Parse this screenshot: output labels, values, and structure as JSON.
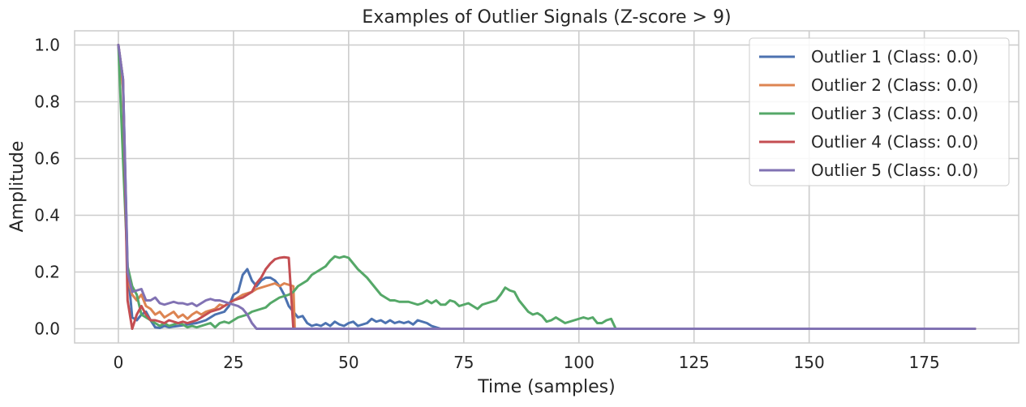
{
  "chart_data": {
    "type": "line",
    "title": "Examples of Outlier Signals (Z-score > 9)",
    "xlabel": "Time (samples)",
    "ylabel": "Amplitude",
    "xlim": [
      -9.5,
      195.5
    ],
    "ylim": [
      -0.05,
      1.05
    ],
    "xticks": [
      0,
      25,
      50,
      75,
      100,
      125,
      150,
      175
    ],
    "yticks": [
      0.0,
      0.2,
      0.4,
      0.6,
      0.8,
      1.0
    ],
    "xtick_labels": [
      "0",
      "25",
      "50",
      "75",
      "100",
      "125",
      "150",
      "175"
    ],
    "ytick_labels": [
      "0.0",
      "0.2",
      "0.4",
      "0.6",
      "0.8",
      "1.0"
    ],
    "grid": true,
    "legend_position": "top-right",
    "series": [
      {
        "name": "Outlier 1 (Class: 0.0)",
        "color": "#4c72b0",
        "points": [
          [
            0,
            1.0
          ],
          [
            1,
            0.88
          ],
          [
            2,
            0.22
          ],
          [
            3,
            0.04
          ],
          [
            4,
            0.03
          ],
          [
            5,
            0.05
          ],
          [
            6,
            0.06
          ],
          [
            7,
            0.03
          ],
          [
            8,
            0.005
          ],
          [
            9,
            0.003
          ],
          [
            10,
            0.01
          ],
          [
            11,
            0.005
          ],
          [
            12,
            0.008
          ],
          [
            13,
            0.01
          ],
          [
            14,
            0.012
          ],
          [
            15,
            0.015
          ],
          [
            16,
            0.018
          ],
          [
            17,
            0.02
          ],
          [
            18,
            0.025
          ],
          [
            19,
            0.03
          ],
          [
            20,
            0.04
          ],
          [
            21,
            0.05
          ],
          [
            22,
            0.055
          ],
          [
            23,
            0.06
          ],
          [
            24,
            0.08
          ],
          [
            25,
            0.12
          ],
          [
            26,
            0.13
          ],
          [
            27,
            0.19
          ],
          [
            28,
            0.21
          ],
          [
            29,
            0.17
          ],
          [
            30,
            0.15
          ],
          [
            31,
            0.17
          ],
          [
            32,
            0.18
          ],
          [
            33,
            0.18
          ],
          [
            34,
            0.17
          ],
          [
            35,
            0.15
          ],
          [
            36,
            0.12
          ],
          [
            37,
            0.08
          ],
          [
            38,
            0.06
          ],
          [
            39,
            0.04
          ],
          [
            40,
            0.045
          ],
          [
            41,
            0.02
          ],
          [
            42,
            0.01
          ],
          [
            43,
            0.015
          ],
          [
            44,
            0.01
          ],
          [
            45,
            0.02
          ],
          [
            46,
            0.01
          ],
          [
            47,
            0.025
          ],
          [
            48,
            0.015
          ],
          [
            49,
            0.01
          ],
          [
            50,
            0.02
          ],
          [
            51,
            0.025
          ],
          [
            52,
            0.01
          ],
          [
            53,
            0.015
          ],
          [
            54,
            0.02
          ],
          [
            55,
            0.035
          ],
          [
            56,
            0.025
          ],
          [
            57,
            0.03
          ],
          [
            58,
            0.02
          ],
          [
            59,
            0.03
          ],
          [
            60,
            0.02
          ],
          [
            61,
            0.025
          ],
          [
            62,
            0.02
          ],
          [
            63,
            0.025
          ],
          [
            64,
            0.015
          ],
          [
            65,
            0.03
          ],
          [
            66,
            0.025
          ],
          [
            67,
            0.02
          ],
          [
            68,
            0.01
          ],
          [
            69,
            0.005
          ],
          [
            70,
            0.0
          ],
          [
            186,
            0.0
          ]
        ]
      },
      {
        "name": "Outlier 2 (Class: 0.0)",
        "color": "#dd8452",
        "points": [
          [
            0,
            1.0
          ],
          [
            1,
            0.85
          ],
          [
            2,
            0.18
          ],
          [
            3,
            0.12
          ],
          [
            4,
            0.1
          ],
          [
            5,
            0.12
          ],
          [
            6,
            0.08
          ],
          [
            7,
            0.07
          ],
          [
            8,
            0.05
          ],
          [
            9,
            0.06
          ],
          [
            10,
            0.04
          ],
          [
            11,
            0.05
          ],
          [
            12,
            0.06
          ],
          [
            13,
            0.04
          ],
          [
            14,
            0.05
          ],
          [
            15,
            0.035
          ],
          [
            16,
            0.05
          ],
          [
            17,
            0.06
          ],
          [
            18,
            0.05
          ],
          [
            19,
            0.06
          ],
          [
            20,
            0.065
          ],
          [
            21,
            0.07
          ],
          [
            22,
            0.085
          ],
          [
            23,
            0.08
          ],
          [
            24,
            0.09
          ],
          [
            25,
            0.1
          ],
          [
            26,
            0.11
          ],
          [
            27,
            0.12
          ],
          [
            28,
            0.125
          ],
          [
            29,
            0.13
          ],
          [
            30,
            0.14
          ],
          [
            31,
            0.145
          ],
          [
            32,
            0.15
          ],
          [
            33,
            0.155
          ],
          [
            34,
            0.16
          ],
          [
            35,
            0.15
          ],
          [
            36,
            0.16
          ],
          [
            37,
            0.155
          ],
          [
            38,
            0.15
          ],
          [
            38.3,
            0.0
          ],
          [
            186,
            0.0
          ]
        ]
      },
      {
        "name": "Outlier 3 (Class: 0.0)",
        "color": "#55a868",
        "points": [
          [
            0,
            1.0
          ],
          [
            1,
            0.6
          ],
          [
            2,
            0.22
          ],
          [
            3,
            0.15
          ],
          [
            4,
            0.12
          ],
          [
            5,
            0.05
          ],
          [
            6,
            0.04
          ],
          [
            7,
            0.03
          ],
          [
            8,
            0.02
          ],
          [
            9,
            0.01
          ],
          [
            10,
            0.02
          ],
          [
            11,
            0.01
          ],
          [
            12,
            0.015
          ],
          [
            13,
            0.02
          ],
          [
            14,
            0.015
          ],
          [
            15,
            0.005
          ],
          [
            16,
            0.01
          ],
          [
            17,
            0.005
          ],
          [
            18,
            0.01
          ],
          [
            19,
            0.015
          ],
          [
            20,
            0.02
          ],
          [
            21,
            0.005
          ],
          [
            22,
            0.02
          ],
          [
            23,
            0.025
          ],
          [
            24,
            0.02
          ],
          [
            25,
            0.03
          ],
          [
            26,
            0.04
          ],
          [
            27,
            0.045
          ],
          [
            28,
            0.05
          ],
          [
            29,
            0.06
          ],
          [
            30,
            0.065
          ],
          [
            31,
            0.07
          ],
          [
            32,
            0.075
          ],
          [
            33,
            0.09
          ],
          [
            34,
            0.1
          ],
          [
            35,
            0.11
          ],
          [
            36,
            0.115
          ],
          [
            37,
            0.12
          ],
          [
            38,
            0.13
          ],
          [
            39,
            0.15
          ],
          [
            40,
            0.16
          ],
          [
            41,
            0.17
          ],
          [
            42,
            0.19
          ],
          [
            43,
            0.2
          ],
          [
            44,
            0.21
          ],
          [
            45,
            0.22
          ],
          [
            46,
            0.24
          ],
          [
            47,
            0.255
          ],
          [
            48,
            0.25
          ],
          [
            49,
            0.255
          ],
          [
            50,
            0.25
          ],
          [
            51,
            0.23
          ],
          [
            52,
            0.21
          ],
          [
            53,
            0.195
          ],
          [
            54,
            0.18
          ],
          [
            55,
            0.16
          ],
          [
            56,
            0.14
          ],
          [
            57,
            0.12
          ],
          [
            58,
            0.11
          ],
          [
            59,
            0.1
          ],
          [
            60,
            0.1
          ],
          [
            61,
            0.095
          ],
          [
            62,
            0.095
          ],
          [
            63,
            0.095
          ],
          [
            64,
            0.09
          ],
          [
            65,
            0.085
          ],
          [
            66,
            0.09
          ],
          [
            67,
            0.1
          ],
          [
            68,
            0.09
          ],
          [
            69,
            0.1
          ],
          [
            70,
            0.085
          ],
          [
            71,
            0.085
          ],
          [
            72,
            0.1
          ],
          [
            73,
            0.095
          ],
          [
            74,
            0.08
          ],
          [
            75,
            0.085
          ],
          [
            76,
            0.09
          ],
          [
            77,
            0.08
          ],
          [
            78,
            0.07
          ],
          [
            79,
            0.085
          ],
          [
            80,
            0.09
          ],
          [
            81,
            0.095
          ],
          [
            82,
            0.1
          ],
          [
            83,
            0.12
          ],
          [
            84,
            0.145
          ],
          [
            85,
            0.135
          ],
          [
            86,
            0.13
          ],
          [
            87,
            0.1
          ],
          [
            88,
            0.08
          ],
          [
            89,
            0.06
          ],
          [
            90,
            0.05
          ],
          [
            91,
            0.055
          ],
          [
            92,
            0.045
          ],
          [
            93,
            0.025
          ],
          [
            94,
            0.03
          ],
          [
            95,
            0.04
          ],
          [
            96,
            0.03
          ],
          [
            97,
            0.02
          ],
          [
            98,
            0.025
          ],
          [
            99,
            0.03
          ],
          [
            100,
            0.035
          ],
          [
            101,
            0.04
          ],
          [
            102,
            0.035
          ],
          [
            103,
            0.04
          ],
          [
            104,
            0.02
          ],
          [
            105,
            0.02
          ],
          [
            106,
            0.03
          ],
          [
            107,
            0.035
          ],
          [
            108,
            0.0
          ],
          [
            186,
            0.0
          ]
        ]
      },
      {
        "name": "Outlier 4 (Class: 0.0)",
        "color": "#c44e52",
        "points": [
          [
            0,
            1.0
          ],
          [
            1,
            0.88
          ],
          [
            2,
            0.1
          ],
          [
            3,
            0.0
          ],
          [
            4,
            0.05
          ],
          [
            5,
            0.08
          ],
          [
            6,
            0.05
          ],
          [
            7,
            0.03
          ],
          [
            8,
            0.03
          ],
          [
            9,
            0.025
          ],
          [
            10,
            0.02
          ],
          [
            11,
            0.03
          ],
          [
            12,
            0.025
          ],
          [
            13,
            0.02
          ],
          [
            14,
            0.025
          ],
          [
            15,
            0.02
          ],
          [
            16,
            0.025
          ],
          [
            17,
            0.03
          ],
          [
            18,
            0.04
          ],
          [
            19,
            0.05
          ],
          [
            20,
            0.06
          ],
          [
            21,
            0.065
          ],
          [
            22,
            0.07
          ],
          [
            23,
            0.08
          ],
          [
            24,
            0.09
          ],
          [
            25,
            0.1
          ],
          [
            26,
            0.105
          ],
          [
            27,
            0.11
          ],
          [
            28,
            0.12
          ],
          [
            29,
            0.13
          ],
          [
            30,
            0.16
          ],
          [
            31,
            0.18
          ],
          [
            32,
            0.21
          ],
          [
            33,
            0.23
          ],
          [
            34,
            0.245
          ],
          [
            35,
            0.25
          ],
          [
            36,
            0.252
          ],
          [
            37,
            0.25
          ],
          [
            38,
            0.0
          ],
          [
            186,
            0.0
          ]
        ]
      },
      {
        "name": "Outlier 5 (Class: 0.0)",
        "color": "#8172b3",
        "points": [
          [
            0,
            1.0
          ],
          [
            1,
            0.88
          ],
          [
            2,
            0.2
          ],
          [
            3,
            0.13
          ],
          [
            4,
            0.135
          ],
          [
            5,
            0.14
          ],
          [
            6,
            0.1
          ],
          [
            7,
            0.1
          ],
          [
            8,
            0.11
          ],
          [
            9,
            0.09
          ],
          [
            10,
            0.085
          ],
          [
            11,
            0.09
          ],
          [
            12,
            0.095
          ],
          [
            13,
            0.09
          ],
          [
            14,
            0.09
          ],
          [
            15,
            0.085
          ],
          [
            16,
            0.09
          ],
          [
            17,
            0.08
          ],
          [
            18,
            0.09
          ],
          [
            19,
            0.1
          ],
          [
            20,
            0.105
          ],
          [
            21,
            0.1
          ],
          [
            22,
            0.1
          ],
          [
            23,
            0.095
          ],
          [
            24,
            0.09
          ],
          [
            25,
            0.085
          ],
          [
            26,
            0.08
          ],
          [
            27,
            0.07
          ],
          [
            28,
            0.05
          ],
          [
            29,
            0.02
          ],
          [
            30,
            0.0
          ],
          [
            186,
            0.0
          ]
        ]
      }
    ]
  }
}
